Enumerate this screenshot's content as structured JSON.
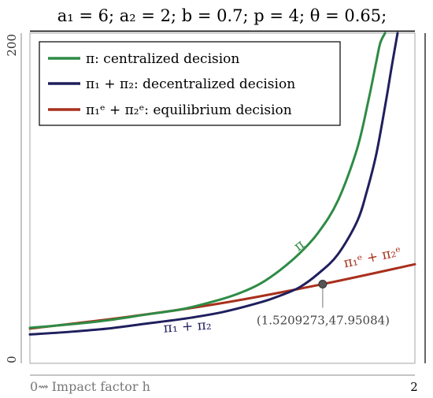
{
  "chart_data": {
    "type": "line",
    "title": "a₁ = 6; a₂ = 2; b = 0.7; p = 4; θ = 0.65;",
    "xlabel": "Impact factor h",
    "xlim": [
      0,
      2
    ],
    "ylim": [
      0,
      200
    ],
    "x_ticks": [
      "0",
      "2"
    ],
    "y_ticks": [
      "0",
      "200"
    ],
    "x_start_label": "0⇝",
    "legend_position": "top-left",
    "colors": {
      "centralized": "#2e8b45",
      "decentralized": "#1f1f5e",
      "equilibrium": "#a8301c",
      "point": "#555555"
    },
    "series": [
      {
        "key": "centralized",
        "name": "π: centralized decision",
        "curve_label": "π",
        "x": [
          0,
          0.2,
          0.4,
          0.6,
          0.8,
          1.0,
          1.1,
          1.2,
          1.3,
          1.4,
          1.5,
          1.6,
          1.7,
          1.76,
          1.8,
          1.82,
          1.845
        ],
        "y": [
          21.5,
          23.5,
          26,
          29.5,
          33,
          39,
          43,
          48.5,
          56.5,
          66.5,
          79.5,
          98.5,
          130,
          160,
          183,
          194,
          200
        ]
      },
      {
        "key": "decentralized",
        "name": "π₁ + π₂: decentralized decision",
        "curve_label": "π₁ + π₂",
        "x": [
          0,
          0.2,
          0.4,
          0.6,
          0.8,
          1.0,
          1.2,
          1.3,
          1.4,
          1.5,
          1.6,
          1.7,
          1.75,
          1.8,
          1.85,
          1.88,
          1.91
        ],
        "y": [
          17.5,
          19,
          21,
          24,
          27,
          31,
          37,
          41,
          46,
          54.5,
          66,
          86,
          104,
          127,
          159,
          180,
          200
        ]
      },
      {
        "key": "equilibrium",
        "name": "π₁ᵉ + π₂ᵉ: equilibrium decision",
        "curve_label": "π₁ᵉ + π₂ᵉ",
        "x": [
          0,
          0.5,
          1.0,
          1.52,
          2.0
        ],
        "y": [
          21,
          28,
          36.5,
          47.95,
          60
        ]
      }
    ],
    "annotations": [
      {
        "x": 1.5209273,
        "y": 47.95084,
        "label": "(1.5209273,47.95084)"
      }
    ]
  }
}
